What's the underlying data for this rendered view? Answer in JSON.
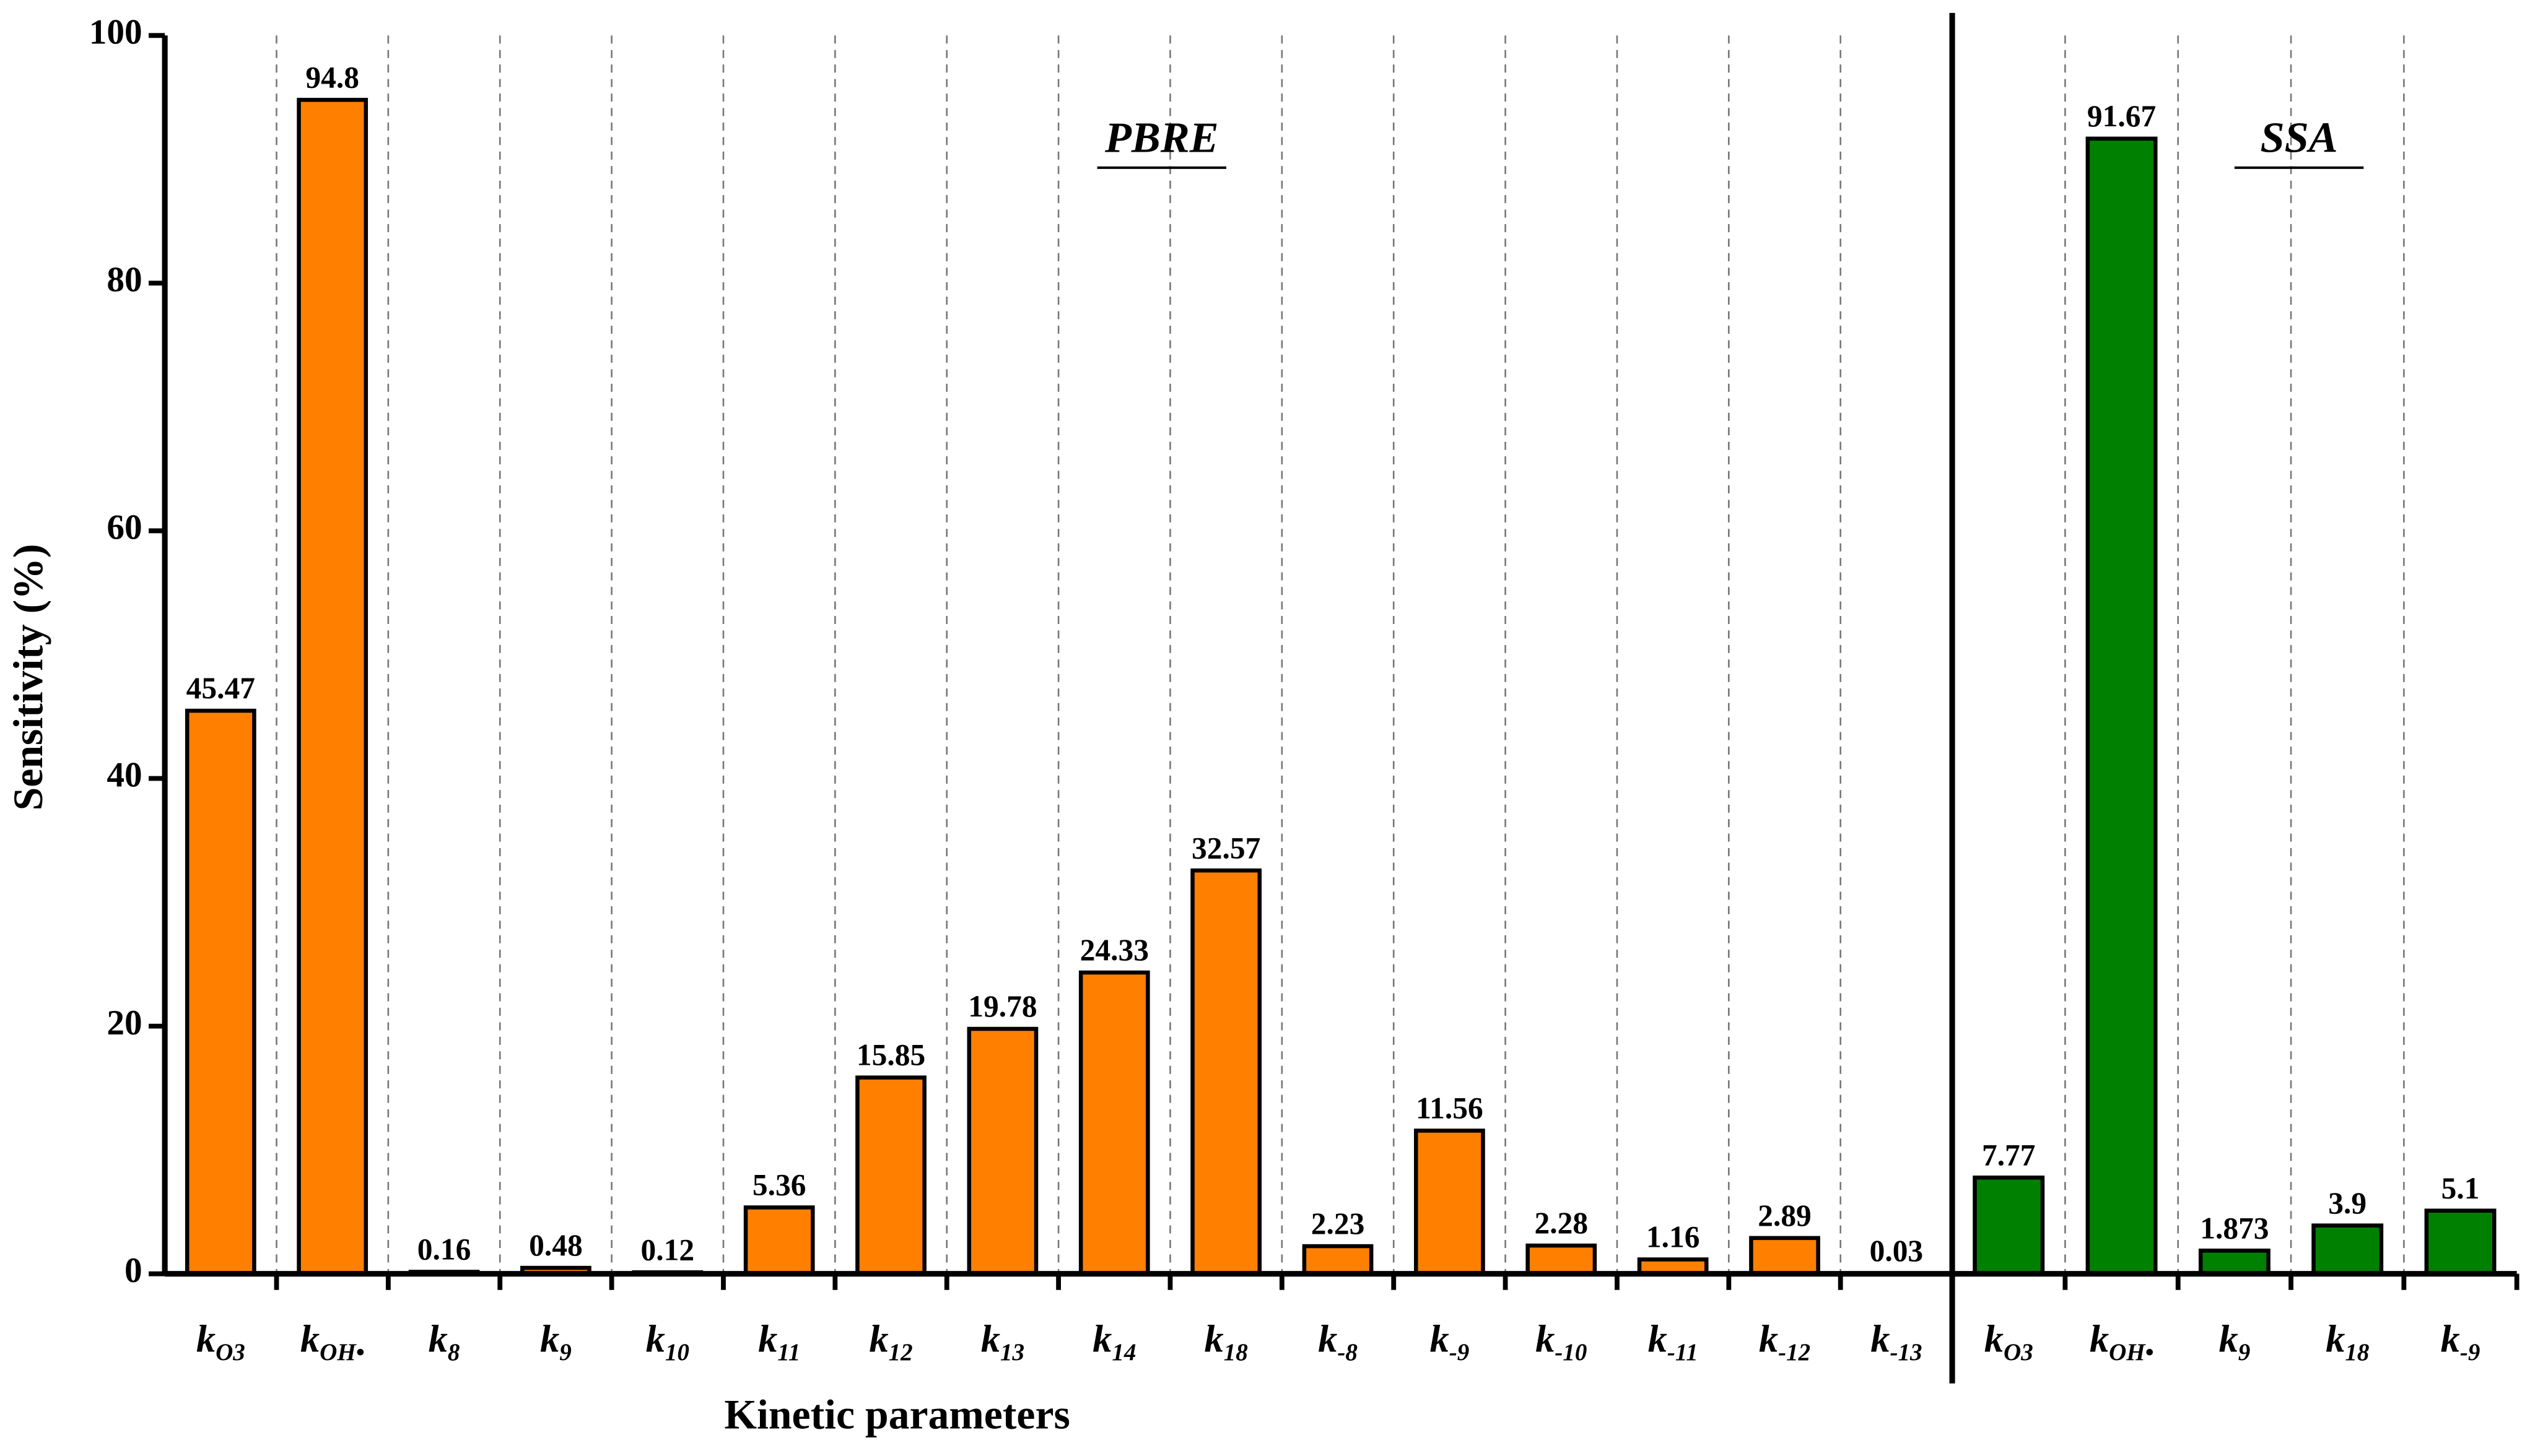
{
  "chart_data": {
    "type": "bar",
    "x_label": "Kinetic parameters",
    "y_label": "Sensitivity (%)",
    "ylim": [
      0,
      100
    ],
    "yticks": [
      0,
      20,
      40,
      60,
      80,
      100
    ],
    "panels": [
      {
        "label": "PBRE",
        "color": "#ff8000",
        "categories": [
          {
            "base": "k",
            "sub": "O3"
          },
          {
            "base": "k",
            "sub": "OH•"
          },
          {
            "base": "k",
            "sub": "8"
          },
          {
            "base": "k",
            "sub": "9"
          },
          {
            "base": "k",
            "sub": "10"
          },
          {
            "base": "k",
            "sub": "11"
          },
          {
            "base": "k",
            "sub": "12"
          },
          {
            "base": "k",
            "sub": "13"
          },
          {
            "base": "k",
            "sub": "14"
          },
          {
            "base": "k",
            "sub": "18"
          },
          {
            "base": "k",
            "sub": "-8"
          },
          {
            "base": "k",
            "sub": "-9"
          },
          {
            "base": "k",
            "sub": "-10"
          },
          {
            "base": "k",
            "sub": "-11"
          },
          {
            "base": "k",
            "sub": "-12"
          },
          {
            "base": "k",
            "sub": "-13"
          }
        ],
        "values": [
          45.47,
          94.8,
          0.16,
          0.48,
          0.12,
          5.36,
          15.85,
          19.78,
          24.33,
          32.57,
          2.23,
          11.56,
          2.28,
          1.16,
          2.89,
          0.03
        ]
      },
      {
        "label": "SSA",
        "color": "#008000",
        "categories": [
          {
            "base": "k",
            "sub": "O3"
          },
          {
            "base": "k",
            "sub": "OH•"
          },
          {
            "base": "k",
            "sub": "9"
          },
          {
            "base": "k",
            "sub": "18"
          },
          {
            "base": "k",
            "sub": "-9"
          }
        ],
        "values": [
          7.77,
          91.67,
          1.873,
          3.9,
          5.1
        ]
      }
    ]
  }
}
